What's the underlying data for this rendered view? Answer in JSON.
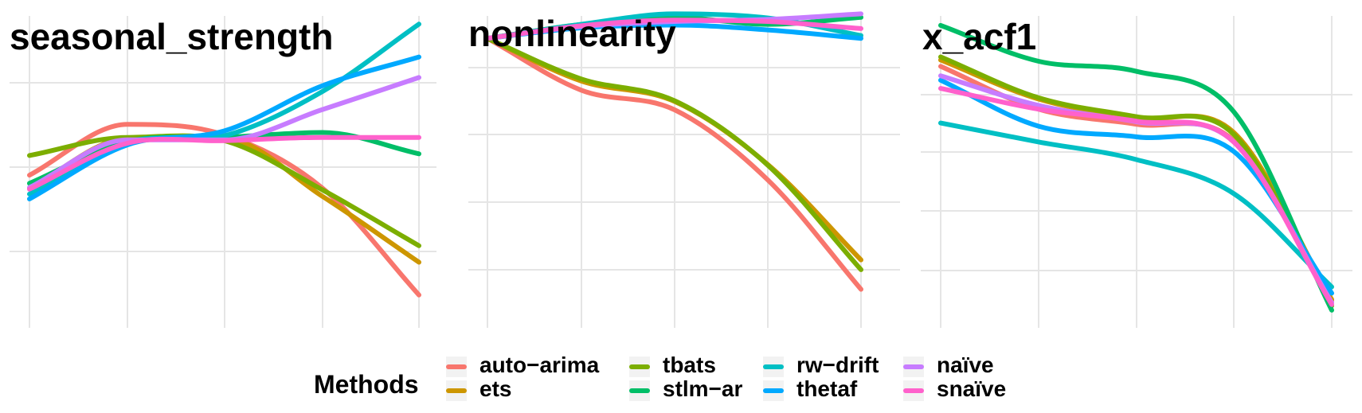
{
  "legend": {
    "title": "Methods",
    "entries": [
      {
        "label": "auto−arima",
        "color": "#F8766D"
      },
      {
        "label": "ets",
        "color": "#CD9600"
      },
      {
        "label": "tbats",
        "color": "#7CAE00"
      },
      {
        "label": "stlm−ar",
        "color": "#00BE67"
      },
      {
        "label": "rw−drift",
        "color": "#00BFC4"
      },
      {
        "label": "thetaf",
        "color": "#00A9FF"
      },
      {
        "label": "naïve",
        "color": "#C77CFF"
      },
      {
        "label": "snaïve",
        "color": "#FF61CC"
      }
    ]
  },
  "chart_data": [
    {
      "type": "line",
      "title": "seasonal_strength",
      "xlabel": "",
      "ylabel": "",
      "xlim": [
        0,
        4.2
      ],
      "ylim": [
        -0.2,
        3.6
      ],
      "x": [
        0,
        1,
        2,
        3,
        4
      ],
      "grid": true,
      "series": [
        {
          "name": "auto−arima",
          "values": [
            1.66,
            2.28,
            2.15,
            1.5,
            0.2
          ]
        },
        {
          "name": "ets",
          "values": [
            1.5,
            2.1,
            2.1,
            1.4,
            0.6
          ]
        },
        {
          "name": "tbats",
          "values": [
            1.9,
            2.12,
            2.08,
            1.48,
            0.8
          ]
        },
        {
          "name": "stlm−ar",
          "values": [
            1.56,
            2.07,
            2.12,
            2.18,
            1.92
          ]
        },
        {
          "name": "rw−drift",
          "values": [
            1.43,
            2.06,
            2.14,
            2.68,
            3.5
          ]
        },
        {
          "name": "thetaf",
          "values": [
            1.37,
            2.03,
            2.2,
            2.75,
            3.1
          ]
        },
        {
          "name": "naïve",
          "values": [
            1.51,
            2.09,
            2.09,
            2.46,
            2.85
          ]
        },
        {
          "name": "snaïve",
          "values": [
            1.49,
            2.05,
            2.08,
            2.12,
            2.12
          ]
        }
      ]
    },
    {
      "type": "line",
      "title": "nonlinearity",
      "xlabel": "",
      "ylabel": "",
      "xlim": [
        0,
        4.2
      ],
      "ylim": [
        -0.35,
        4.1
      ],
      "x": [
        0,
        1,
        2,
        3,
        4
      ],
      "grid": true,
      "series": [
        {
          "name": "auto−arima",
          "values": [
            3.78,
            3.04,
            2.76,
            1.76,
            0.2
          ]
        },
        {
          "name": "ets",
          "values": [
            3.78,
            3.17,
            2.88,
            1.98,
            0.62
          ]
        },
        {
          "name": "tbats",
          "values": [
            3.78,
            3.2,
            2.89,
            1.97,
            0.48
          ]
        },
        {
          "name": "stlm−ar",
          "values": [
            3.78,
            3.98,
            4.08,
            3.98,
            4.08
          ]
        },
        {
          "name": "rw−drift",
          "values": [
            3.78,
            3.98,
            4.13,
            4.07,
            3.82
          ]
        },
        {
          "name": "thetaf",
          "values": [
            3.78,
            3.93,
            3.97,
            3.9,
            3.78
          ]
        },
        {
          "name": "naïve",
          "values": [
            3.78,
            3.95,
            4.02,
            4.05,
            4.13
          ]
        },
        {
          "name": "snaïve",
          "values": [
            3.78,
            3.96,
            4.04,
            4.02,
            3.92
          ]
        }
      ]
    },
    {
      "type": "line",
      "title": "x_acf1",
      "xlabel": "",
      "ylabel": "",
      "xlim": [
        0,
        4.2
      ],
      "ylim": [
        -0.05,
        4.9
      ],
      "x": [
        0,
        1,
        2,
        3,
        4
      ],
      "grid": true,
      "series": [
        {
          "name": "auto−arima",
          "values": [
            4.1,
            3.42,
            3.18,
            2.92,
            0.38
          ]
        },
        {
          "name": "ets",
          "values": [
            4.2,
            3.58,
            3.28,
            3.05,
            0.4
          ]
        },
        {
          "name": "tbats",
          "values": [
            4.25,
            3.6,
            3.3,
            3.02,
            0.3
          ]
        },
        {
          "name": "stlm−ar",
          "values": [
            4.75,
            4.18,
            4.02,
            3.38,
            0.23
          ]
        },
        {
          "name": "rw−drift",
          "values": [
            3.2,
            2.9,
            2.62,
            2.08,
            0.6
          ]
        },
        {
          "name": "thetaf",
          "values": [
            3.88,
            3.15,
            2.98,
            2.75,
            0.5
          ]
        },
        {
          "name": "naïve",
          "values": [
            3.95,
            3.48,
            3.22,
            2.9,
            0.35
          ]
        },
        {
          "name": "snaïve",
          "values": [
            3.75,
            3.42,
            3.23,
            2.9,
            0.32
          ]
        }
      ]
    }
  ]
}
